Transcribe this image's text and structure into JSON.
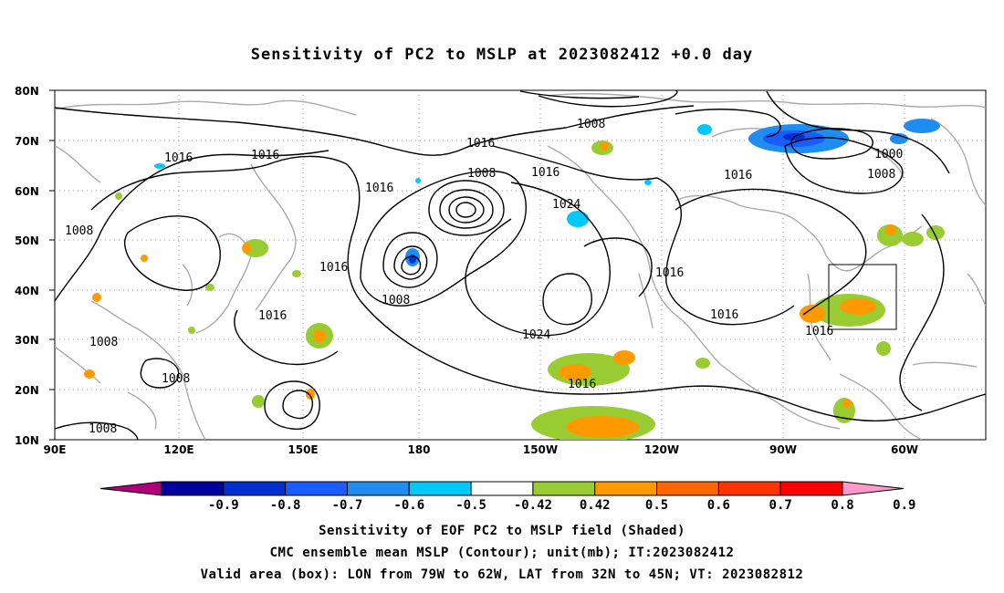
{
  "title": "Sensitivity of PC2 to MSLP at 2023082412 +0.0 day",
  "lat_labels": [
    "80N",
    "70N",
    "60N",
    "50N",
    "40N",
    "30N",
    "20N",
    "10N"
  ],
  "lon_labels": [
    "90E",
    "120E",
    "150E",
    "180",
    "150W",
    "120W",
    "90W",
    "60W"
  ],
  "contour_labels": [
    "1008",
    "1016",
    "1016",
    "1008",
    "1016",
    "1016",
    "1024",
    "1016",
    "1000",
    "1008",
    "1016",
    "1008",
    "1016",
    "1024",
    "1016",
    "1016",
    "1016",
    "1008",
    "1008",
    "1008",
    "1016"
  ],
  "colorbar": {
    "labels": [
      "-0.9",
      "-0.8",
      "-0.7",
      "-0.6",
      "-0.5",
      "-0.42",
      "0.42",
      "0.5",
      "0.6",
      "0.7",
      "0.8",
      "0.9"
    ],
    "colors": [
      "#b0007a",
      "#0000a0",
      "#0030d0",
      "#1a5cff",
      "#1e8cf0",
      "#00c8f8",
      "#ffffff",
      "#99cc33",
      "#ff9900",
      "#ff6600",
      "#ff3300",
      "#ff0000",
      "#ff99cc"
    ]
  },
  "captions": {
    "line1": "Sensitivity of EOF PC2 to MSLP field (Shaded)",
    "line2": "CMC ensemble mean MSLP (Contour); unit(mb); IT:2023082412",
    "line3": "Valid area (box): LON from 79W to 62W, LAT from 32N to 45N; VT: 2023082812"
  }
}
